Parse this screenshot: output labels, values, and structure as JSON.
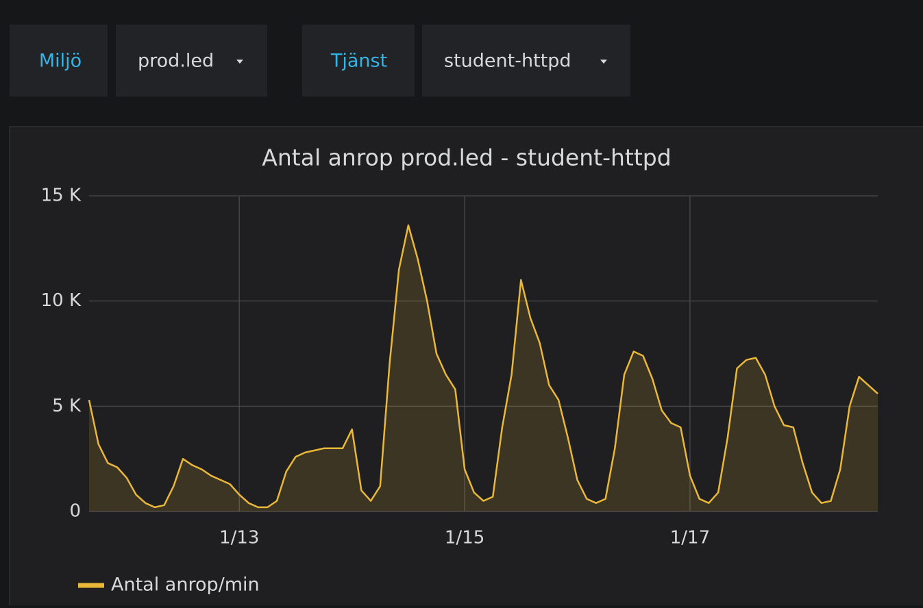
{
  "variables": [
    {
      "label": "Miljö",
      "value": "prod.led"
    },
    {
      "label": "Tjänst",
      "value": "student-httpd"
    }
  ],
  "chart_data": {
    "type": "area",
    "title": "Antal anrop prod.led - student-httpd",
    "categories": [
      null,
      null,
      null,
      null,
      null,
      null,
      null,
      null,
      null,
      null,
      null,
      null,
      null,
      null,
      null,
      null,
      "1/13",
      null,
      null,
      null,
      null,
      null,
      null,
      null,
      null,
      null,
      null,
      null,
      null,
      null,
      null,
      null,
      null,
      null,
      null,
      null,
      null,
      null,
      null,
      null,
      "1/15",
      null,
      null,
      null,
      null,
      null,
      null,
      null,
      null,
      null,
      null,
      null,
      null,
      null,
      null,
      null,
      null,
      null,
      null,
      null,
      null,
      null,
      null,
      null,
      "1/17",
      null,
      null,
      null,
      null,
      null,
      null,
      null,
      null,
      null,
      null,
      null,
      null,
      null,
      null,
      null,
      null,
      null,
      null,
      null,
      null
    ],
    "series": [
      {
        "name": "Antal anrop/min",
        "color": "#eab839",
        "values": [
          5300,
          3200,
          2300,
          2100,
          1600,
          800,
          400,
          200,
          300,
          1200,
          2500,
          2200,
          2000,
          1700,
          1500,
          1300,
          800,
          400,
          200,
          200,
          500,
          1900,
          2600,
          2800,
          2900,
          3000,
          3000,
          3000,
          3900,
          1000,
          500,
          1200,
          7000,
          11500,
          13600,
          12000,
          10000,
          7500,
          6500,
          5800,
          2000,
          900,
          500,
          700,
          4000,
          6500,
          11000,
          9200,
          8000,
          6000,
          5300,
          3500,
          1500,
          600,
          400,
          600,
          3000,
          6500,
          7600,
          7400,
          6300,
          4800,
          4200,
          4000,
          1700,
          600,
          400,
          900,
          3500,
          6800,
          7200,
          7300,
          6500,
          5000,
          4100,
          4000,
          2300,
          900,
          400,
          500,
          2000,
          5000,
          6400,
          6000,
          5600
        ]
      }
    ],
    "ylim": [
      0,
      15000
    ],
    "yticks": [
      0,
      {
        "value": 5000,
        "label": "5 K"
      },
      {
        "value": 10000,
        "label": "10 K"
      },
      {
        "value": 15000,
        "label": "15 K"
      }
    ],
    "grid": true,
    "legend": "bottom"
  }
}
